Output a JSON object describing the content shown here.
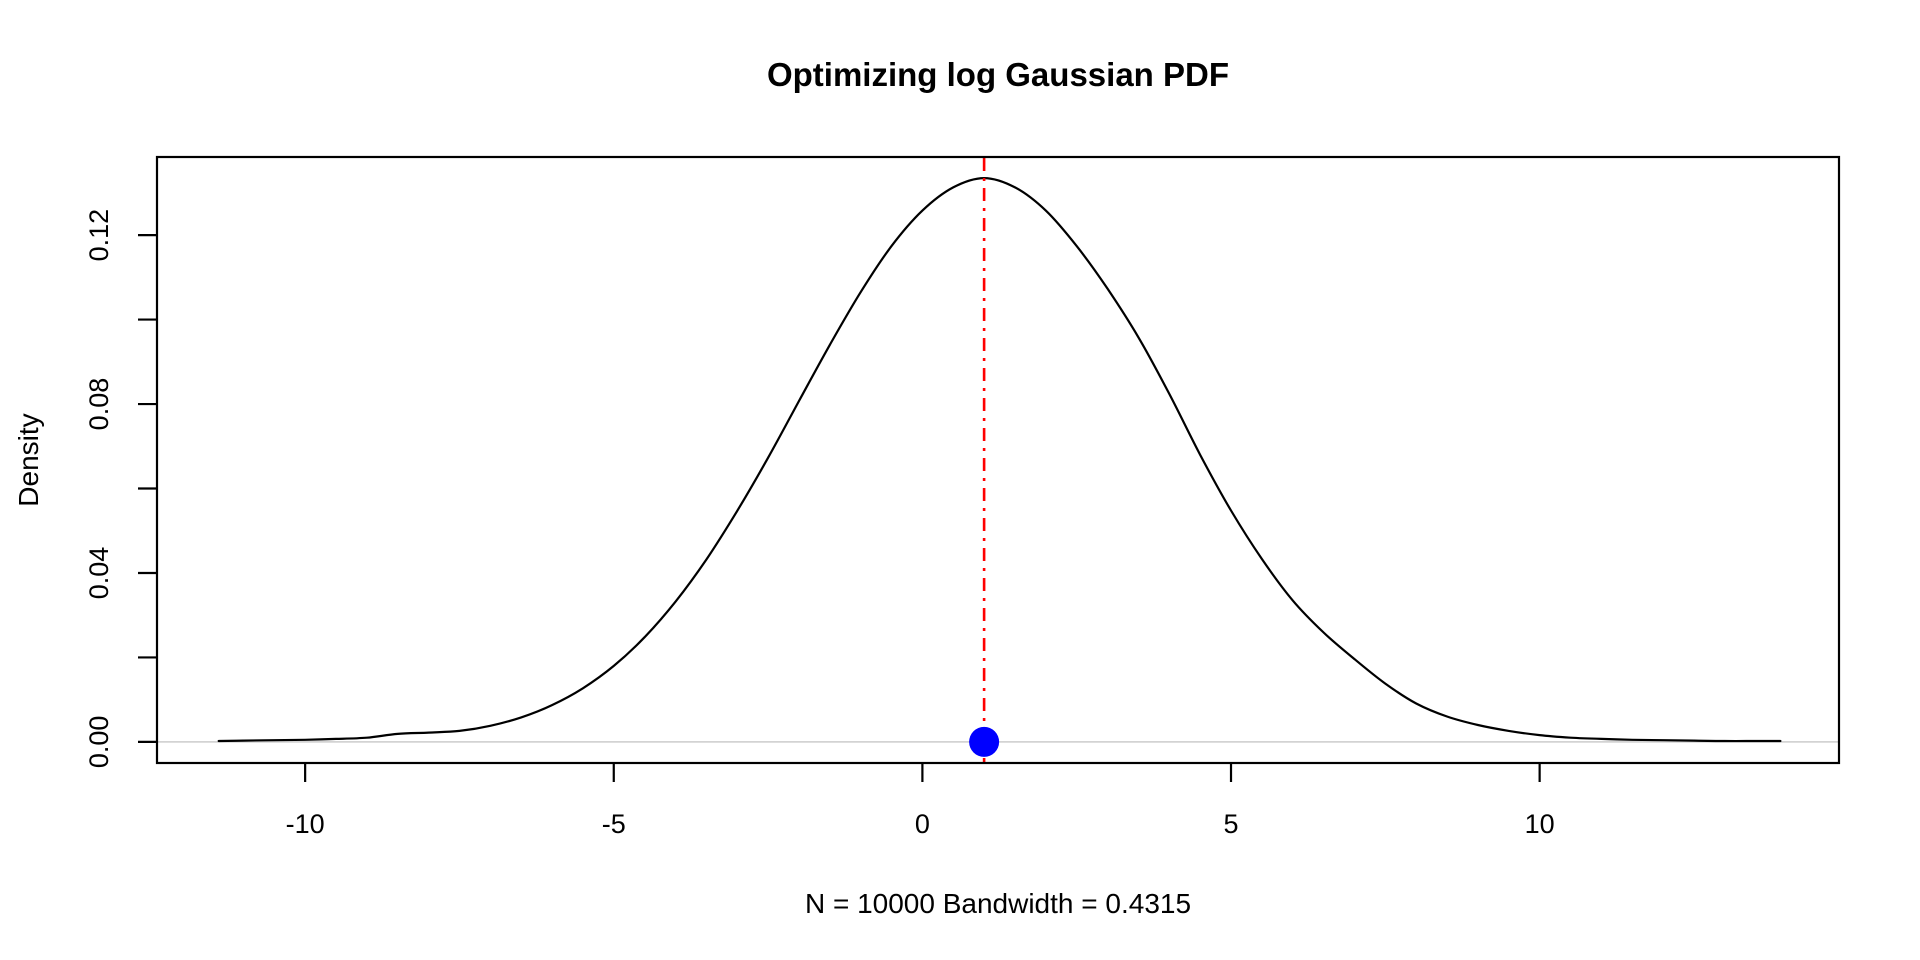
{
  "chart_data": {
    "type": "line",
    "title": "Optimizing log Gaussian PDF",
    "xlabel": "N = 10000   Bandwidth = 0.4315",
    "ylabel": "Density",
    "xlim": [
      -12.4,
      14.85
    ],
    "ylim": [
      -0.005,
      0.1385
    ],
    "grid": false,
    "legend": "none",
    "x_axis": {
      "tick_values": [
        -10,
        -5,
        0,
        5,
        10
      ],
      "tick_labels": [
        "-10",
        "-5",
        "0",
        "5",
        "10"
      ]
    },
    "y_axis": {
      "tick_values": [
        0.0,
        0.02,
        0.04,
        0.06,
        0.08,
        0.1,
        0.12
      ],
      "labeled_tick_values": [
        0.0,
        0.04,
        0.08,
        0.12
      ],
      "labeled_tick_labels": [
        "0.00",
        "0.04",
        "0.08",
        "0.12"
      ]
    },
    "series": [
      {
        "name": "kde-density-curve",
        "color": "#000000",
        "points": [
          [
            -11.4,
            0.0002
          ],
          [
            -11.0,
            0.0003
          ],
          [
            -10.5,
            0.0004
          ],
          [
            -10.0,
            0.0005
          ],
          [
            -9.5,
            0.0007
          ],
          [
            -9.0,
            0.001
          ],
          [
            -8.5,
            0.0019
          ],
          [
            -8.0,
            0.0022
          ],
          [
            -7.5,
            0.0026
          ],
          [
            -7.0,
            0.0038
          ],
          [
            -6.5,
            0.0058
          ],
          [
            -6.0,
            0.0087
          ],
          [
            -5.5,
            0.0127
          ],
          [
            -5.0,
            0.018
          ],
          [
            -4.5,
            0.0248
          ],
          [
            -4.0,
            0.0332
          ],
          [
            -3.5,
            0.0432
          ],
          [
            -3.0,
            0.0547
          ],
          [
            -2.5,
            0.0673
          ],
          [
            -2.0,
            0.0807
          ],
          [
            -1.5,
            0.094
          ],
          [
            -1.0,
            0.1065
          ],
          [
            -0.5,
            0.1174
          ],
          [
            0.0,
            0.1258
          ],
          [
            0.5,
            0.1313
          ],
          [
            1.0,
            0.1335
          ],
          [
            1.5,
            0.1313
          ],
          [
            2.0,
            0.1258
          ],
          [
            2.5,
            0.1174
          ],
          [
            3.0,
            0.1073
          ],
          [
            3.5,
            0.0958
          ],
          [
            4.0,
            0.0824
          ],
          [
            4.5,
            0.068
          ],
          [
            5.0,
            0.0548
          ],
          [
            5.5,
            0.0433
          ],
          [
            6.0,
            0.0335
          ],
          [
            6.5,
            0.0259
          ],
          [
            7.0,
            0.0196
          ],
          [
            7.5,
            0.0138
          ],
          [
            8.0,
            0.0091
          ],
          [
            8.5,
            0.006
          ],
          [
            9.0,
            0.004
          ],
          [
            9.5,
            0.0026
          ],
          [
            10.0,
            0.0016
          ],
          [
            10.5,
            0.001
          ],
          [
            11.0,
            0.0007
          ],
          [
            11.5,
            0.0005
          ],
          [
            12.0,
            0.0004
          ],
          [
            12.5,
            0.0003
          ],
          [
            13.0,
            0.0002
          ],
          [
            13.5,
            0.0002
          ],
          [
            13.9,
            0.0002
          ]
        ]
      }
    ],
    "annotations": {
      "zero_hline": {
        "y": 0.0,
        "color": "#d3d3d3"
      },
      "optimum_vline": {
        "x": 1.0,
        "color": "#ff0000",
        "style": "dotdash"
      },
      "optimum_point": {
        "x": 1.0,
        "y": 0.0,
        "color": "#0000ff"
      }
    },
    "colors": {
      "curve": "#000000",
      "axis": "#000000",
      "background": "#ffffff"
    }
  }
}
